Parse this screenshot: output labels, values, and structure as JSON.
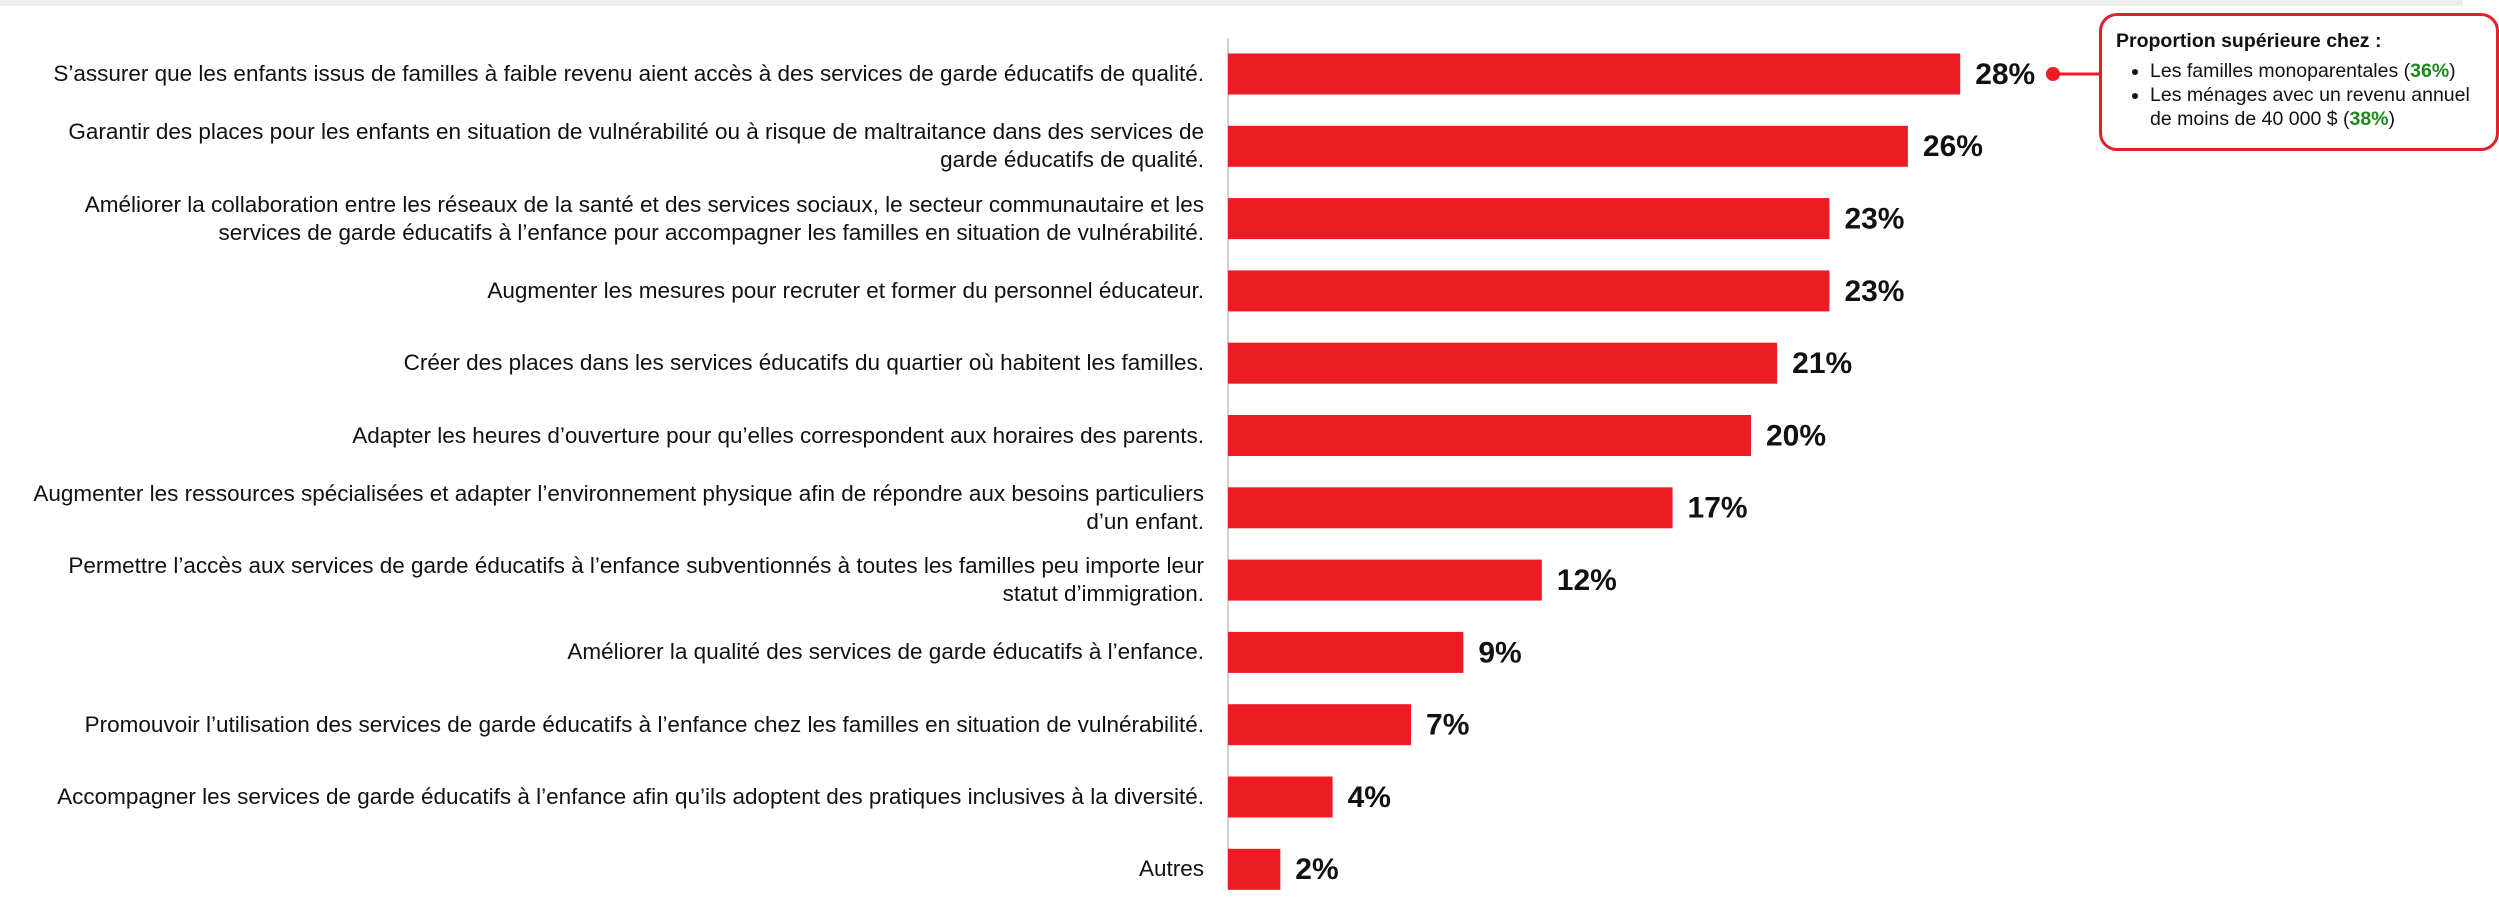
{
  "chart_data": {
    "type": "bar",
    "orientation": "horizontal",
    "color": "#ed1c24",
    "categories": [
      "S’assurer que les enfants issus de familles à faible revenu aient accès à des services de garde éducatifs de qualité.",
      "Garantir des places pour les enfants en situation de vulnérabilité ou à risque de maltraitance dans des services de garde éducatifs de qualité.",
      "Améliorer la collaboration entre les réseaux de la santé et des services sociaux, le secteur communautaire et les services de garde éducatifs à l’enfance pour accompagner les familles en situation de vulnérabilité.",
      "Augmenter les mesures pour recruter et former du personnel éducateur.",
      "Créer des places dans les services éducatifs du quartier où habitent les familles.",
      "Adapter les heures d’ouverture pour qu’elles correspondent aux horaires des parents.",
      "Augmenter les ressources spécialisées et adapter l’environnement physique afin de répondre aux besoins particuliers d’un enfant.",
      "Permettre l’accès aux services de garde éducatifs à l’enfance subventionnés à toutes les familles peu importe leur statut d’immigration.",
      "Améliorer la qualité des services de garde éducatifs à l’enfance.",
      "Promouvoir l’utilisation des services de garde éducatifs à l’enfance chez les familles en situation de vulnérabilité.",
      "Accompagner les services de garde éducatifs à l’enfance afin qu’ils adoptent des pratiques inclusives à la diversité.",
      "Autres"
    ],
    "values": [
      28,
      26,
      23,
      23,
      21,
      20,
      17,
      12,
      9,
      7,
      4,
      2
    ],
    "value_labels": [
      "28%",
      "26%",
      "23%",
      "23%",
      "21%",
      "20%",
      "17%",
      "12%",
      "9%",
      "7%",
      "4%",
      "2%"
    ],
    "annotation": {
      "title": "Proportion supérieure chez :",
      "items": [
        {
          "text": "Les familles monoparentales (",
          "highlight": "36%",
          "end": ")"
        },
        {
          "text": "Les ménages avec un revenu annuel de moins de 40 000 $ (",
          "highlight": "38%",
          "end": ")"
        }
      ]
    }
  }
}
